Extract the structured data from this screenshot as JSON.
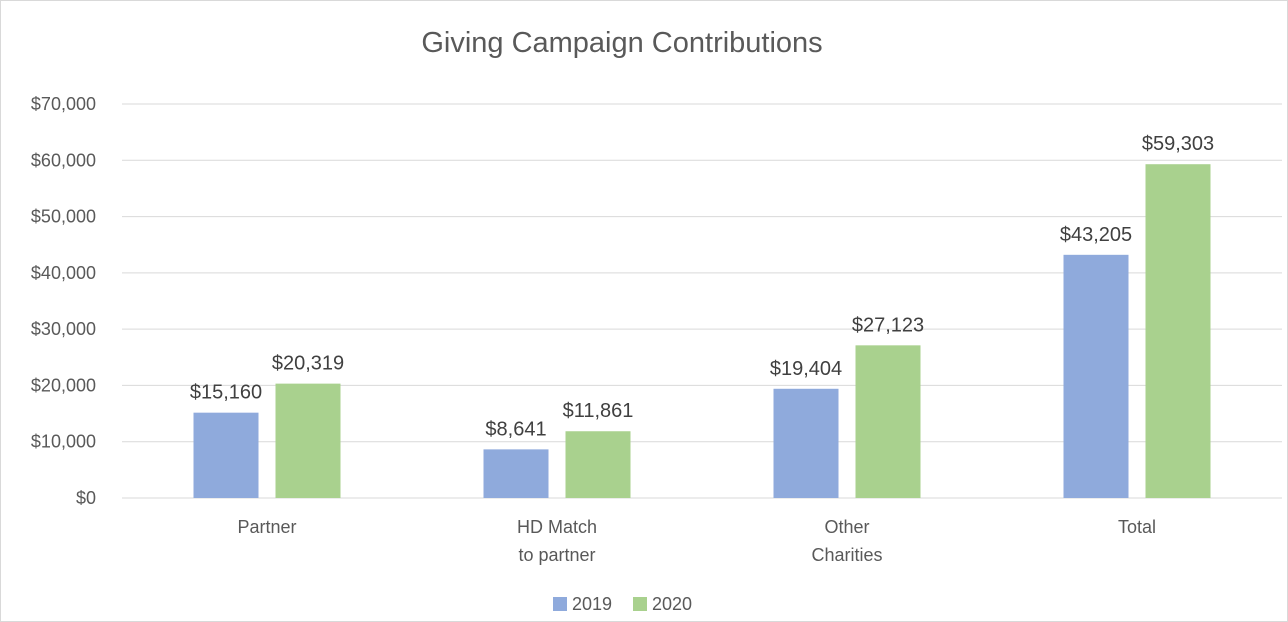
{
  "chart_data": {
    "type": "bar",
    "title": "Giving Campaign Contributions",
    "xlabel": "",
    "ylabel": "",
    "ylim": [
      0,
      70000
    ],
    "yticks": [
      0,
      10000,
      20000,
      30000,
      40000,
      50000,
      60000,
      70000
    ],
    "ytick_labels": [
      "$0",
      "$10,000",
      "$20,000",
      "$30,000",
      "$40,000",
      "$50,000",
      "$60,000",
      "$70,000"
    ],
    "grid": true,
    "legend_position": "bottom",
    "categories": [
      [
        "Partner"
      ],
      [
        "HD Match",
        "to partner"
      ],
      [
        "Other",
        "Charities"
      ],
      [
        "Total"
      ]
    ],
    "series": [
      {
        "name": "2019",
        "color": "#8faadc",
        "values": [
          15160,
          8641,
          19404,
          43205
        ],
        "labels": [
          "$15,160",
          "$8,641",
          "$19,404",
          "$43,205"
        ]
      },
      {
        "name": "2020",
        "color": "#a9d18e",
        "values": [
          20319,
          11861,
          27123,
          59303
        ],
        "labels": [
          "$20,319",
          "$11,861",
          "$27,123",
          "$59,303"
        ]
      }
    ]
  }
}
